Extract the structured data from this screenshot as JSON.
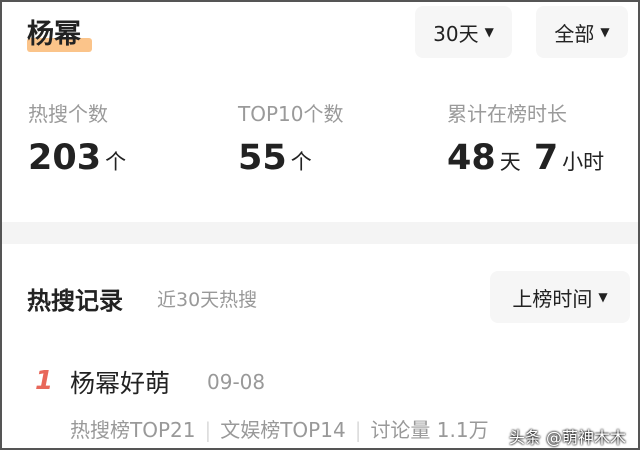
{
  "header": {
    "title": "杨幂",
    "filter_period": "30天",
    "filter_scope": "全部"
  },
  "stats": [
    {
      "label": "热搜个数",
      "value": "203",
      "unit": "个"
    },
    {
      "label": "TOP10个数",
      "value": "55",
      "unit": "个"
    },
    {
      "label": "累计在榜时长",
      "value_days": "48",
      "unit_days": "天",
      "value_hours": "7",
      "unit_hours": "小时"
    }
  ],
  "records": {
    "title": "热搜记录",
    "subtitle": "近30天热搜",
    "sort_label": "上榜时间",
    "items": [
      {
        "rank": "1",
        "title": "杨幂好萌",
        "date": "09-08",
        "meta": [
          "热搜榜TOP21",
          "文娱榜TOP14",
          "讨论量 1.1万"
        ]
      }
    ]
  },
  "watermark": "头条 @萌神木木",
  "colors": {
    "highlight": "#fbc48a",
    "rank": "#e8675a"
  }
}
